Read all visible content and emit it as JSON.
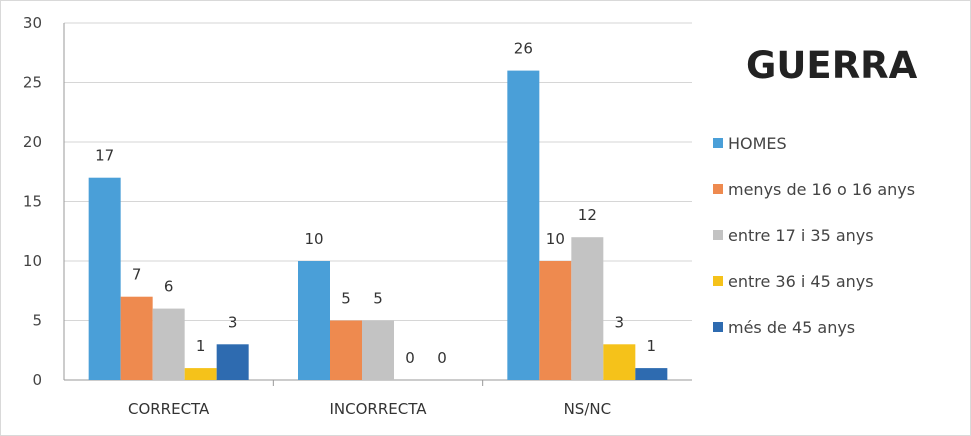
{
  "chart_data": {
    "type": "bar",
    "title": "GUERRA",
    "categories": [
      "CORRECTA",
      "INCORRECTA",
      "NS/NC"
    ],
    "series": [
      {
        "name": "HOMES",
        "color": "#4a9fd8",
        "values": [
          17,
          10,
          26
        ]
      },
      {
        "name": "menys de 16 o 16 anys",
        "color": "#ee8a4f",
        "values": [
          7,
          5,
          10
        ]
      },
      {
        "name": "entre 17 i 35 anys",
        "color": "#c3c3c3",
        "values": [
          6,
          5,
          12
        ]
      },
      {
        "name": "entre 36 i 45 anys",
        "color": "#f5c21a",
        "values": [
          1,
          0,
          3
        ]
      },
      {
        "name": "més de 45 anys",
        "color": "#2e6bb0",
        "values": [
          3,
          0,
          1
        ]
      }
    ],
    "ylim": [
      0,
      30
    ],
    "yticks": [
      0,
      5,
      10,
      15,
      20,
      25,
      30
    ],
    "grid": true,
    "legend_position": "right"
  }
}
